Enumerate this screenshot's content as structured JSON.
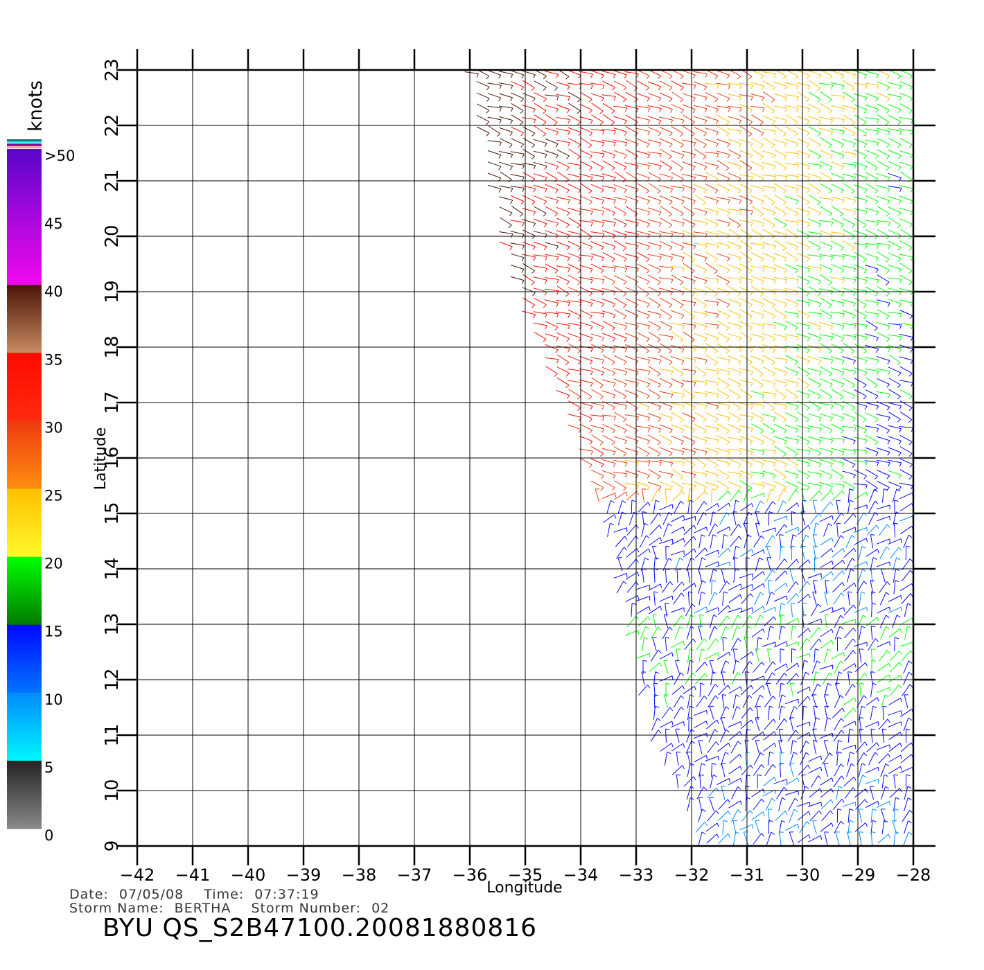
{
  "colorbar": {
    "unit": "knots",
    "labels": [
      ">50",
      "45",
      "40",
      "35",
      "30",
      "25",
      "20",
      "15",
      "10",
      "5",
      "0"
    ],
    "bands": [
      {
        "from": 50,
        "to": 40,
        "top": "#5a06c8",
        "bottom": "#f209ee"
      },
      {
        "from": 40,
        "to": 35,
        "top": "#4a1408",
        "bottom": "#c88a60"
      },
      {
        "from": 35,
        "to": 30,
        "top": "#ff0a00",
        "bottom": "#ff2a10"
      },
      {
        "from": 30,
        "to": 25,
        "top": "#ee3a10",
        "bottom": "#ff8e10"
      },
      {
        "from": 25,
        "to": 20,
        "top": "#ffc000",
        "bottom": "#fff82a"
      },
      {
        "from": 20,
        "to": 15,
        "top": "#00ff00",
        "bottom": "#007a00"
      },
      {
        "from": 15,
        "to": 10,
        "top": "#0008ff",
        "bottom": "#0074ff"
      },
      {
        "from": 10,
        "to": 5,
        "top": "#008aff",
        "bottom": "#00f8ff"
      },
      {
        "from": 5,
        "to": 0,
        "top": "#222222",
        "bottom": "#8a8a8a"
      }
    ],
    "top_stripes": [
      "#0a7a8a",
      "#40e8e8",
      "#8a0a8a",
      "#f0a8b0"
    ]
  },
  "map": {
    "lon_range": [
      -42,
      -28
    ],
    "lat_range": [
      9,
      23
    ],
    "lon_ticks": [
      "-42",
      "-41",
      "-40",
      "-39",
      "-38",
      "-37",
      "-36",
      "-35",
      "-34",
      "-33",
      "-32",
      "-31",
      "-30",
      "-29",
      "-28"
    ],
    "lat_ticks": [
      "9",
      "10",
      "11",
      "12",
      "13",
      "14",
      "15",
      "16",
      "17",
      "18",
      "19",
      "20",
      "21",
      "22",
      "23"
    ],
    "xlabel": "Longitude",
    "ylabel": "Latitude",
    "grid": true,
    "swath_corners_lonlat": [
      [
        -36.0,
        23.0
      ],
      [
        -28.0,
        23.0
      ],
      [
        -28.0,
        9.0
      ],
      [
        -31.8,
        9.0
      ],
      [
        -32.7,
        11.0
      ],
      [
        -33.6,
        15.0
      ],
      [
        -34.5,
        17.5
      ],
      [
        -35.3,
        19.5
      ]
    ]
  },
  "info": {
    "date_label": "Date:",
    "date": "07/05/08",
    "time_label": "Time:",
    "time": "07:37:19",
    "storm_name_label": "Storm Name:",
    "storm_name": "BERTHA",
    "storm_number_label": "Storm Number:",
    "storm_number": "02",
    "product_id": "BYU QS_S2B47100.20081880816"
  }
}
